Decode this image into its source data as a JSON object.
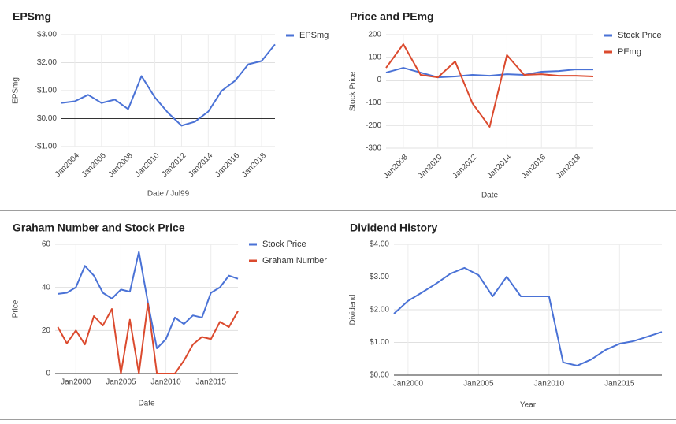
{
  "chart_data": [
    {
      "type": "line",
      "title": "EPSmg",
      "x_label": "Date / Jul99",
      "y_label": "EPSmg",
      "x": [
        2003,
        2004,
        2005,
        2006,
        2007,
        2008,
        2009,
        2010,
        2011,
        2012,
        2013,
        2014,
        2015,
        2016,
        2017,
        2018,
        2019
      ],
      "series": [
        {
          "name": "EPSmg",
          "color": "#4a72d6",
          "values": [
            0.56,
            0.62,
            0.85,
            0.56,
            0.68,
            0.34,
            1.52,
            0.76,
            0.2,
            -0.25,
            -0.11,
            0.25,
            0.99,
            1.35,
            1.94,
            2.06,
            2.65
          ]
        }
      ],
      "xlim": [
        2003,
        2019
      ],
      "xticks": [
        {
          "value": 2004,
          "label": "Jan2004"
        },
        {
          "value": 2006,
          "label": "Jan2006"
        },
        {
          "value": 2008,
          "label": "Jan2008"
        },
        {
          "value": 2010,
          "label": "Jan2010"
        },
        {
          "value": 2012,
          "label": "Jan2012"
        },
        {
          "value": 2014,
          "label": "Jan2014"
        },
        {
          "value": 2016,
          "label": "Jan2016"
        },
        {
          "value": 2018,
          "label": "Jan2018"
        }
      ],
      "ylim": [
        -1,
        3
      ],
      "yticks": [
        {
          "value": 3,
          "label": "$3.00"
        },
        {
          "value": 2,
          "label": "$2.00"
        },
        {
          "value": 1,
          "label": "$1.00"
        },
        {
          "value": 0,
          "label": "$0.00"
        },
        {
          "value": -1,
          "label": "-$1.00"
        }
      ],
      "grid": true,
      "legend": "top-right"
    },
    {
      "type": "line",
      "title": "Price and PEmg",
      "x_label": "Date",
      "y_label": "Stock Price",
      "x": [
        2007,
        2008,
        2009,
        2010,
        2011,
        2012,
        2013,
        2014,
        2015,
        2016,
        2017,
        2018,
        2019
      ],
      "series": [
        {
          "name": "Stock Price",
          "color": "#4a72d6",
          "values": [
            33,
            54,
            33,
            12,
            16,
            23,
            19,
            26,
            23,
            37,
            40,
            47,
            47
          ]
        },
        {
          "name": "PEmg",
          "color": "#db4a2e",
          "values": [
            54,
            158,
            23,
            12,
            82,
            -102,
            -206,
            110,
            23,
            26,
            19,
            19,
            16
          ]
        }
      ],
      "xlim": [
        2007,
        2019
      ],
      "xticks": [
        {
          "value": 2008,
          "label": "Jan2008"
        },
        {
          "value": 2010,
          "label": "Jan2010"
        },
        {
          "value": 2012,
          "label": "Jan2012"
        },
        {
          "value": 2014,
          "label": "Jan2014"
        },
        {
          "value": 2016,
          "label": "Jan2016"
        },
        {
          "value": 2018,
          "label": "Jan2018"
        }
      ],
      "ylim": [
        -300,
        200
      ],
      "yticks": [
        200,
        100,
        0,
        -100,
        -200,
        -300
      ],
      "grid": true,
      "legend": "top-right"
    },
    {
      "type": "line",
      "title": "Graham Number and Stock Price",
      "x_label": "Date",
      "y_label": "Price",
      "x": [
        1998,
        1999,
        2000,
        2001,
        2002,
        2003,
        2004,
        2005,
        2006,
        2007,
        2008,
        2009,
        2010,
        2011,
        2012,
        2013,
        2014,
        2015,
        2016,
        2017,
        2018
      ],
      "series": [
        {
          "name": "Stock Price",
          "color": "#4a72d6",
          "values": [
            37,
            37.5,
            40,
            50,
            45.5,
            37.5,
            34.8,
            39,
            38,
            56.5,
            33,
            11.7,
            16,
            26,
            23,
            27,
            26,
            37.5,
            40,
            45.5,
            44
          ]
        },
        {
          "name": "Graham Number",
          "color": "#db4a2e",
          "values": [
            21.6,
            14,
            20,
            13.5,
            26.7,
            22.3,
            30,
            0,
            25,
            0,
            32.6,
            0,
            0,
            0,
            6,
            13.5,
            17,
            16,
            24,
            21.6,
            29
          ]
        }
      ],
      "xlim": [
        1997.7,
        2018
      ],
      "xticks": [
        {
          "value": 2000,
          "label": "Jan2000"
        },
        {
          "value": 2005,
          "label": "Jan2005"
        },
        {
          "value": 2010,
          "label": "Jan2010"
        },
        {
          "value": 2015,
          "label": "Jan2015"
        }
      ],
      "ylim": [
        0,
        60
      ],
      "yticks": [
        0,
        20,
        40,
        60
      ],
      "grid": true,
      "legend": "top-right"
    },
    {
      "type": "line",
      "title": "Dividend History",
      "x_label": "Year",
      "y_label": "Dividend",
      "x": [
        1999,
        2000,
        2001,
        2002,
        2003,
        2004,
        2005,
        2006,
        2007,
        2008,
        2009,
        2010,
        2011,
        2012,
        2013,
        2014,
        2015,
        2016,
        2017,
        2018
      ],
      "values": [
        1.88,
        2.27,
        2.53,
        2.8,
        3.1,
        3.28,
        3.06,
        2.41,
        3.01,
        2.41,
        2.41,
        2.41,
        0.39,
        0.29,
        0.48,
        0.77,
        0.96,
        1.04,
        1.18,
        1.32
      ],
      "color": "#4a72d6",
      "xlim": [
        1999,
        2018
      ],
      "xticks": [
        {
          "value": 2000,
          "label": "Jan2000"
        },
        {
          "value": 2005,
          "label": "Jan2005"
        },
        {
          "value": 2010,
          "label": "Jan2010"
        },
        {
          "value": 2015,
          "label": "Jan2015"
        }
      ],
      "ylim": [
        0,
        4
      ],
      "yticks": [
        {
          "value": 0,
          "label": "$0.00"
        },
        {
          "value": 1,
          "label": "$1.00"
        },
        {
          "value": 2,
          "label": "$2.00"
        },
        {
          "value": 3,
          "label": "$3.00"
        },
        {
          "value": 4,
          "label": "$4.00"
        }
      ],
      "grid": true
    }
  ]
}
